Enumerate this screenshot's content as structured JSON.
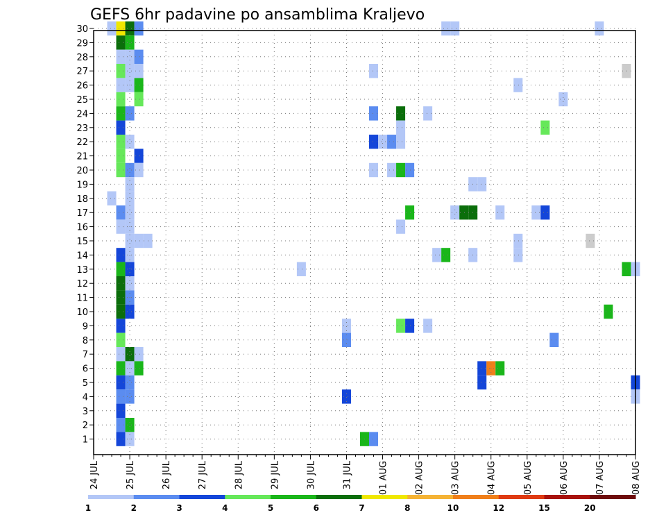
{
  "chart_data": {
    "type": "heatmap",
    "title": "GEFS 6hr padavine po ansamblima Kraljevo",
    "xlabel": "",
    "ylabel": "",
    "x_tick_labels": [
      "24 JUL",
      "25 JUL",
      "26 JUL",
      "27 JUL",
      "28 JUL",
      "29 JUL",
      "30 JUL",
      "31 JUL",
      "01 AUG",
      "02 AUG",
      "03 AUG",
      "04 AUG",
      "05 AUG",
      "06 AUG",
      "07 AUG",
      "08 AUG"
    ],
    "y_tick_labels": [
      "1",
      "2",
      "3",
      "4",
      "5",
      "6",
      "7",
      "8",
      "9",
      "10",
      "11",
      "12",
      "13",
      "14",
      "15",
      "16",
      "17",
      "18",
      "19",
      "20",
      "21",
      "22",
      "23",
      "24",
      "25",
      "26",
      "27",
      "28",
      "29",
      "30"
    ],
    "x_range_days": [
      0,
      15
    ],
    "y_range": [
      0,
      30
    ],
    "grid": true,
    "colorbar": {
      "labels": [
        "1",
        "2",
        "3",
        "4",
        "5",
        "6",
        "7",
        "8",
        "10",
        "12",
        "15",
        "20"
      ],
      "colors": [
        "#b3c7f7",
        "#5b8cf0",
        "#1446d9",
        "#66e85a",
        "#1ab61a",
        "#0b6e0b",
        "#f0e800",
        "#f5b335",
        "#f07f1a",
        "#df3a12",
        "#a8120c",
        "#6e0c0c"
      ]
    },
    "cells": [
      [
        0,
        0.5,
        30,
        1
      ],
      [
        0,
        0.75,
        30,
        7
      ],
      [
        0,
        1.0,
        30,
        6
      ],
      [
        0,
        1.25,
        30,
        2
      ],
      [
        0,
        9.75,
        30,
        1
      ],
      [
        0,
        10.0,
        30,
        1
      ],
      [
        0,
        14.0,
        30,
        1
      ],
      [
        0,
        0.75,
        29,
        6
      ],
      [
        0,
        1.0,
        29,
        5
      ],
      [
        0,
        0.75,
        28,
        1
      ],
      [
        0,
        1.0,
        28,
        1
      ],
      [
        0,
        1.25,
        28,
        2
      ],
      [
        0,
        0.75,
        27,
        4
      ],
      [
        0,
        1.0,
        27,
        1
      ],
      [
        0,
        1.25,
        27,
        1
      ],
      [
        0,
        7.75,
        27,
        1
      ],
      [
        0,
        14.75,
        27,
        14
      ],
      [
        0,
        0.75,
        26,
        1
      ],
      [
        0,
        1.0,
        26,
        1
      ],
      [
        0,
        1.25,
        26,
        5
      ],
      [
        0,
        11.75,
        26,
        1
      ],
      [
        0,
        0.75,
        25,
        4
      ],
      [
        0,
        1.25,
        25,
        4
      ],
      [
        0,
        13.0,
        25,
        1
      ],
      [
        0,
        0.75,
        24,
        5
      ],
      [
        0,
        1.0,
        24,
        2
      ],
      [
        0,
        7.75,
        24,
        2
      ],
      [
        0,
        8.5,
        24,
        6
      ],
      [
        0,
        9.25,
        24,
        1
      ],
      [
        0,
        0.75,
        23,
        3
      ],
      [
        0,
        8.5,
        23,
        1
      ],
      [
        0,
        12.5,
        23,
        4
      ],
      [
        0,
        0.75,
        22,
        4
      ],
      [
        0,
        1.0,
        22,
        1
      ],
      [
        0,
        7.75,
        22,
        3
      ],
      [
        0,
        8.0,
        22,
        1
      ],
      [
        0,
        8.25,
        22,
        2
      ],
      [
        0,
        8.5,
        22,
        1
      ],
      [
        0,
        0.75,
        21,
        4
      ],
      [
        0,
        1.25,
        21,
        3
      ],
      [
        0,
        0.75,
        20,
        4
      ],
      [
        0,
        1.0,
        20,
        2
      ],
      [
        0,
        1.25,
        20,
        1
      ],
      [
        0,
        7.75,
        20,
        1
      ],
      [
        0,
        8.25,
        20,
        1
      ],
      [
        0,
        8.5,
        20,
        5
      ],
      [
        0,
        8.75,
        20,
        2
      ],
      [
        0,
        1.0,
        19,
        1
      ],
      [
        0,
        10.5,
        19,
        1
      ],
      [
        0,
        10.75,
        19,
        1
      ],
      [
        0,
        0.5,
        18,
        1
      ],
      [
        0,
        1.0,
        18,
        1
      ],
      [
        0,
        0.75,
        17,
        2
      ],
      [
        0,
        1.0,
        17,
        1
      ],
      [
        0,
        8.75,
        17,
        5
      ],
      [
        0,
        10.0,
        17,
        1
      ],
      [
        0,
        10.25,
        17,
        6
      ],
      [
        0,
        10.5,
        17,
        6
      ],
      [
        0,
        11.25,
        17,
        1
      ],
      [
        0,
        12.25,
        17,
        1
      ],
      [
        0,
        12.5,
        17,
        3
      ],
      [
        0,
        0.75,
        16,
        1
      ],
      [
        0,
        1.0,
        16,
        1
      ],
      [
        0,
        8.5,
        16,
        1
      ],
      [
        0,
        1.0,
        15,
        1
      ],
      [
        0,
        1.25,
        15,
        1
      ],
      [
        0,
        1.5,
        15,
        1
      ],
      [
        0,
        11.75,
        15,
        1
      ],
      [
        0,
        13.75,
        15,
        13
      ],
      [
        0,
        0.75,
        14,
        3
      ],
      [
        0,
        1.0,
        14,
        1
      ],
      [
        0,
        9.5,
        14,
        1
      ],
      [
        0,
        9.75,
        14,
        5
      ],
      [
        0,
        10.5,
        14,
        1
      ],
      [
        0,
        11.75,
        14,
        1
      ],
      [
        0,
        0.75,
        13,
        5
      ],
      [
        0,
        1.0,
        13,
        3
      ],
      [
        0,
        5.75,
        13,
        1
      ],
      [
        0,
        14.75,
        13,
        5
      ],
      [
        0,
        15.0,
        13,
        1
      ],
      [
        0,
        0.75,
        12,
        6
      ],
      [
        0,
        1.0,
        12,
        1
      ],
      [
        0,
        0.75,
        11,
        6
      ],
      [
        0,
        1.0,
        11,
        2
      ],
      [
        0,
        0.75,
        10,
        6
      ],
      [
        0,
        1.0,
        10,
        3
      ],
      [
        0,
        14.25,
        10,
        5
      ],
      [
        0,
        0.75,
        9,
        3
      ],
      [
        0,
        7.0,
        9,
        1
      ],
      [
        0,
        8.5,
        9,
        4
      ],
      [
        0,
        8.75,
        9,
        3
      ],
      [
        0,
        9.25,
        9,
        1
      ],
      [
        0,
        0.75,
        8,
        4
      ],
      [
        0,
        7.0,
        8,
        2
      ],
      [
        0,
        12.75,
        8,
        2
      ],
      [
        0,
        0.75,
        7,
        1
      ],
      [
        0,
        1.0,
        7,
        6
      ],
      [
        0,
        1.25,
        7,
        1
      ],
      [
        0,
        0.75,
        6,
        5
      ],
      [
        0,
        1.0,
        6,
        1
      ],
      [
        0,
        1.25,
        6,
        5
      ],
      [
        0,
        10.75,
        6,
        3
      ],
      [
        0,
        11.0,
        6,
        9
      ],
      [
        0,
        11.25,
        6,
        5
      ],
      [
        0,
        0.75,
        5,
        3
      ],
      [
        0,
        1.0,
        5,
        2
      ],
      [
        0,
        10.75,
        5,
        3
      ],
      [
        0,
        15.0,
        5,
        3
      ],
      [
        0,
        0.75,
        4,
        2
      ],
      [
        0,
        1.0,
        4,
        2
      ],
      [
        0,
        7.0,
        4,
        3
      ],
      [
        0,
        15.0,
        4,
        1
      ],
      [
        0,
        0.75,
        3,
        3
      ],
      [
        0,
        0.75,
        2,
        2
      ],
      [
        0,
        1.0,
        2,
        5
      ],
      [
        0,
        0.75,
        1,
        3
      ],
      [
        0,
        1.0,
        1,
        1
      ],
      [
        0,
        7.5,
        1,
        5
      ],
      [
        0,
        7.75,
        1,
        2
      ]
    ]
  }
}
